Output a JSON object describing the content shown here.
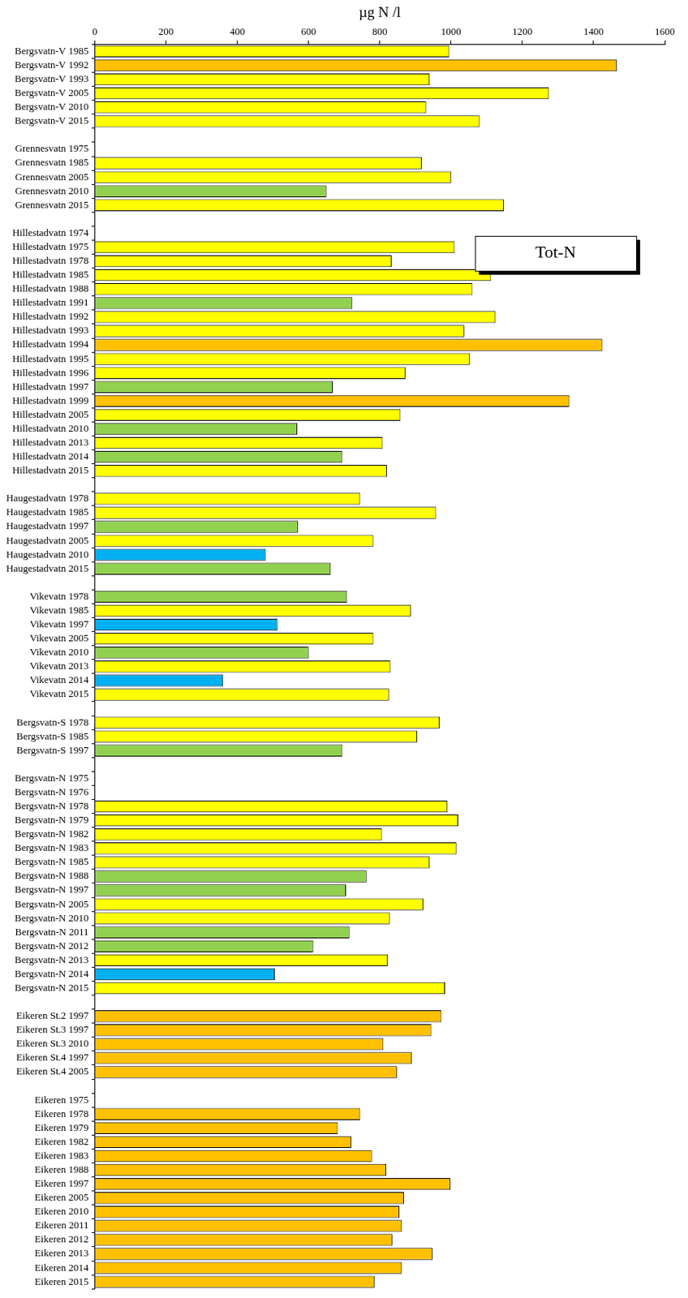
{
  "chart_data": {
    "type": "bar",
    "orientation": "horizontal",
    "xlabel": "µg N /l",
    "annotation": "Tot-N",
    "xlim": [
      0,
      1600
    ],
    "xticks": [
      0,
      200,
      400,
      600,
      800,
      1000,
      1200,
      1400,
      1600
    ],
    "grid": false,
    "legend": "none",
    "data_labels": false,
    "categories": [
      "Bergsvatn-V 1985",
      "Bergsvatn-V 1992",
      "Bergsvatn-V 1993",
      "Bergsvatn-V 2005",
      "Bergsvatn-V 2010",
      "Bergsvatn-V 2015",
      null,
      "Grennesvatn 1975",
      "Grennesvatn 1985",
      "Grennesvatn 2005",
      "Grennesvatn 2010",
      "Grennesvatn 2015",
      null,
      "Hillestadvatn 1974",
      "Hillestadvatn 1975",
      "Hillestadvatn 1978",
      "Hillestadvatn 1985",
      "Hillestadvatn 1988",
      "Hillestadvatn 1991",
      "Hillestadvatn 1992",
      "Hillestadvatn 1993",
      "Hillestadvatn 1994",
      "Hillestadvatn 1995",
      "Hillestadvatn 1996",
      "Hillestadvatn 1997",
      "Hillestadvatn 1999",
      "Hillestadvatn 2005",
      "Hillestadvatn 2010",
      "Hillestadvatn 2013",
      "Hillestadvatn 2014",
      "Hillestadvatn 2015",
      null,
      "Haugestadvatn 1978",
      "Haugestadvatn 1985",
      "Haugestadvatn 1997",
      "Haugestadvatn 2005",
      "Haugestadvatn 2010",
      "Haugestadvatn 2015",
      null,
      "Vikevatn 1978",
      "Vikevatn 1985",
      "Vikevatn 1997",
      "Vikevatn 2005",
      "Vikevatn 2010",
      "Vikevatn 2013",
      "Vikevatn 2014",
      "Vikevatn 2015",
      null,
      "Bergsvatn-S 1978",
      "Bergsvatn-S 1985",
      "Bergsvatn-S 1997",
      null,
      "Bergsvatn-N 1975",
      "Bergsvatn-N 1976",
      "Bergsvatn-N 1978",
      "Bergsvatn-N 1979",
      "Bergsvatn-N 1982",
      "Bergsvatn-N 1983",
      "Bergsvatn-N 1985",
      "Bergsvatn-N 1988",
      "Bergsvatn-N 1997",
      "Bergsvatn-N 2005",
      "Bergsvatn-N 2010",
      "Bergsvatn-N 2011",
      "Bergsvatn-N 2012",
      "Bergsvatn-N 2013",
      "Bergsvatn-N 2014",
      "Bergsvatn-N 2015",
      null,
      "Eikeren St.2 1997",
      "Eikeren St.3 1997",
      "Eikeren St.3 2010",
      "Eikeren St.4 1997",
      "Eikeren St.4 2005",
      null,
      "Eikeren 1975",
      "Eikeren 1978",
      "Eikeren 1979",
      "Eikeren 1982",
      "Eikeren 1983",
      "Eikeren 1988",
      "Eikeren 1997",
      "Eikeren 2005",
      "Eikeren 2010",
      "Eikeren 2011",
      "Eikeren 2012",
      "Eikeren 2013",
      "Eikeren 2014",
      "Eikeren 2015"
    ],
    "values": [
      995,
      1465,
      940,
      1275,
      930,
      1080,
      null,
      null,
      918,
      1000,
      650,
      1148,
      null,
      null,
      1010,
      833,
      1112,
      1060,
      723,
      1125,
      1037,
      1425,
      1053,
      872,
      668,
      1332,
      858,
      568,
      808,
      695,
      820,
      null,
      745,
      958,
      570,
      782,
      480,
      662,
      null,
      708,
      887,
      513,
      782,
      600,
      830,
      360,
      826,
      null,
      968,
      905,
      695,
      null,
      null,
      null,
      990,
      1020,
      806,
      1015,
      940,
      763,
      705,
      922,
      828,
      715,
      613,
      822,
      505,
      983,
      null,
      973,
      945,
      810,
      890,
      848,
      null,
      null,
      745,
      682,
      720,
      778,
      818,
      998,
      868,
      855,
      862,
      835,
      948,
      862,
      785
    ],
    "colors": [
      "#ffff00",
      "#ffc000",
      "#ffff00",
      "#ffff00",
      "#ffff00",
      "#ffff00",
      null,
      null,
      "#ffff00",
      "#ffff00",
      "#92d050",
      "#ffff00",
      null,
      null,
      "#ffff00",
      "#ffff00",
      "#ffff00",
      "#ffff00",
      "#92d050",
      "#ffff00",
      "#ffff00",
      "#ffc000",
      "#ffff00",
      "#ffff00",
      "#92d050",
      "#ffc000",
      "#ffff00",
      "#92d050",
      "#ffff00",
      "#92d050",
      "#ffff00",
      null,
      "#ffff00",
      "#ffff00",
      "#92d050",
      "#ffff00",
      "#00b0f0",
      "#92d050",
      null,
      "#92d050",
      "#ffff00",
      "#00b0f0",
      "#ffff00",
      "#92d050",
      "#ffff00",
      "#00b0f0",
      "#ffff00",
      null,
      "#ffff00",
      "#ffff00",
      "#92d050",
      null,
      null,
      null,
      "#ffff00",
      "#ffff00",
      "#ffff00",
      "#ffff00",
      "#ffff00",
      "#92d050",
      "#92d050",
      "#ffff00",
      "#ffff00",
      "#92d050",
      "#92d050",
      "#ffff00",
      "#00b0f0",
      "#ffff00",
      null,
      "#ffc000",
      "#ffc000",
      "#ffc000",
      "#ffc000",
      "#ffc000",
      null,
      null,
      "#ffc000",
      "#ffc000",
      "#ffc000",
      "#ffc000",
      "#ffc000",
      "#ffc000",
      "#ffc000",
      "#ffc000",
      "#ffc000",
      "#ffc000",
      "#ffc000",
      "#ffc000",
      "#ffc000"
    ]
  }
}
